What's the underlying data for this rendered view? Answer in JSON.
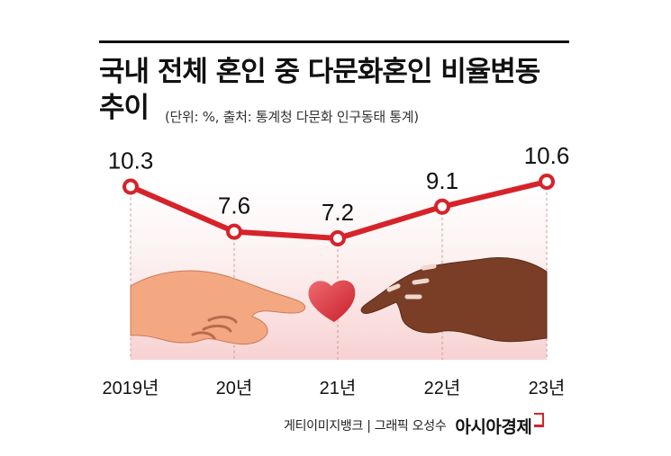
{
  "title_lines": [
    "국내 전체 혼인 중 다문화혼인 비율변동",
    "추이"
  ],
  "subtitle": "(단위: %, 출처: 통계청 다문화 인구동태 통계)",
  "credit": "게티이미지뱅크 | 그래픽 오성수",
  "brand": "아시아경제",
  "colors": {
    "line": "#d6232a",
    "marker_fill": "#ffffff",
    "text": "#111111",
    "guide": "#cc9999"
  },
  "chart_data": {
    "type": "line",
    "categories": [
      "2019년",
      "20년",
      "21년",
      "22년",
      "23년"
    ],
    "values": [
      10.3,
      7.6,
      7.2,
      9.1,
      10.6
    ],
    "data_labels": [
      "10.3",
      "7.6",
      "7.2",
      "9.1",
      "10.6"
    ],
    "title": "국내 전체 혼인 중 다문화혼인 비율변동 추이",
    "unit": "%",
    "xlabel": "",
    "ylabel": "",
    "grid": false,
    "legend": "none",
    "guide_lines": "dashed vertical"
  }
}
